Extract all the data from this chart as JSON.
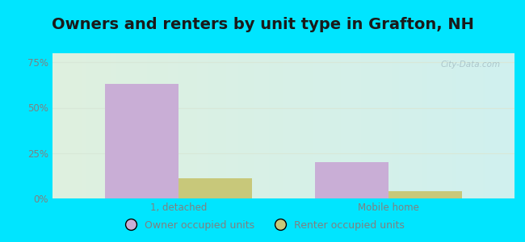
{
  "title": "Owners and renters by unit type in Grafton, NH",
  "categories": [
    "1, detached",
    "Mobile home"
  ],
  "owner_values": [
    63,
    20
  ],
  "renter_values": [
    11,
    4
  ],
  "owner_color": "#c9aed6",
  "renter_color": "#c8c87a",
  "yticks": [
    0,
    25,
    50,
    75
  ],
  "ytick_labels": [
    "0%",
    "25%",
    "50%",
    "75%"
  ],
  "ylim": [
    0,
    80
  ],
  "bar_width": 0.35,
  "title_fontsize": 14,
  "legend_labels": [
    "Owner occupied units",
    "Renter occupied units"
  ],
  "watermark": "City-Data.com",
  "outer_bg": "#00e5ff",
  "grid_color": "#d8e8d8",
  "tick_color": "#808080",
  "title_color": "#1a1a1a",
  "xlim": [
    -0.6,
    1.6
  ]
}
